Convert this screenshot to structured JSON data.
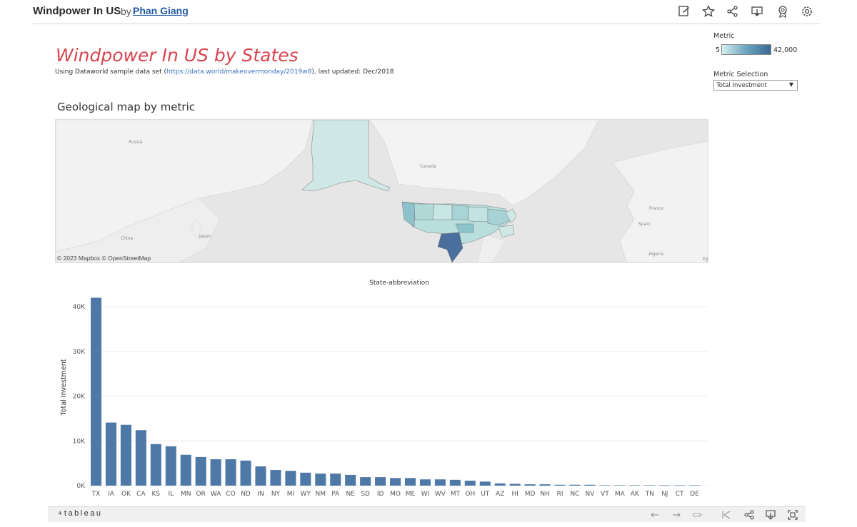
{
  "topbar": {
    "title": "Windpower In US",
    "by": "by",
    "author": "Phan Giang",
    "icons": [
      "edit-icon",
      "star-icon",
      "share-icon",
      "download-icon",
      "badge-icon",
      "settings-icon"
    ]
  },
  "dashboard": {
    "title": "Windpower In US by States",
    "subtitle_pre": "Using Dataworld sample data set (",
    "subtitle_link": "https://data.world/makeovermonday/2019w8",
    "subtitle_post": "), last updated: Dec/2018"
  },
  "legend": {
    "label": "Metric",
    "min": "5",
    "max": "42,000",
    "colors": [
      "#d6efef",
      "#6aa4c0",
      "#3c6994"
    ]
  },
  "metric_selection": {
    "label": "Metric Selection",
    "selected": "Total Investment"
  },
  "map": {
    "title": "Geological map by metric",
    "labels": {
      "russia": "Russia",
      "canada": "Canada",
      "china": "China",
      "japan": "Japan",
      "france": "France",
      "spain": "Spain",
      "algeria": "Algeria",
      "eg": "Eg"
    },
    "attribution": "© 2023 Mapbox  © OpenStreetMap",
    "highlight_color": "#4a6f9c"
  },
  "chart_data": {
    "type": "bar",
    "title": "State-abbreviation",
    "ylabel": "Total Investment",
    "ylim": [
      0,
      44000
    ],
    "yticks": [
      0,
      10000,
      20000,
      30000,
      40000
    ],
    "ytick_labels": [
      "0K",
      "10K",
      "20K",
      "30K",
      "40K"
    ],
    "bar_color": "#4e79a7",
    "categories": [
      "TX",
      "IA",
      "OK",
      "CA",
      "KS",
      "IL",
      "MN",
      "OR",
      "WA",
      "CO",
      "ND",
      "IN",
      "NY",
      "MI",
      "WY",
      "NM",
      "PA",
      "NE",
      "SD",
      "ID",
      "MO",
      "ME",
      "WI",
      "WV",
      "MT",
      "OH",
      "UT",
      "AZ",
      "HI",
      "MD",
      "NH",
      "RI",
      "NC",
      "NV",
      "VT",
      "MA",
      "AK",
      "TN",
      "NJ",
      "CT",
      "DE"
    ],
    "values": [
      42000,
      14100,
      13600,
      12400,
      9300,
      8800,
      6900,
      6400,
      5900,
      5900,
      5600,
      4300,
      3500,
      3300,
      2900,
      2700,
      2700,
      2400,
      1900,
      1900,
      1700,
      1700,
      1400,
      1400,
      1300,
      1100,
      900,
      500,
      400,
      300,
      300,
      200,
      200,
      200,
      100,
      100,
      100,
      50,
      20,
      10,
      5
    ]
  },
  "bottombar": {
    "logo": "+tableau",
    "icons": [
      "undo-icon",
      "redo-icon",
      "revert-icon",
      "reset-icon",
      "share-icon",
      "download-icon",
      "fullscreen-icon"
    ]
  }
}
